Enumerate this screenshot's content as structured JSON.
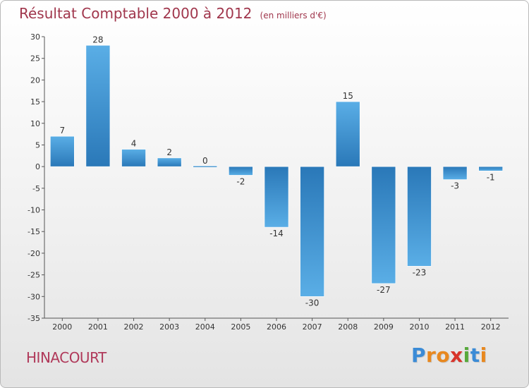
{
  "title": {
    "main": "Résultat Comptable 2000 à 2012",
    "unit": "(en milliers d'€)"
  },
  "town": "HINACOURT",
  "logo": {
    "letters": [
      "P",
      "r",
      "o",
      "x",
      "i",
      "t",
      "i"
    ],
    "colors": [
      "#3b8bd6",
      "#e8881f",
      "#e8881f",
      "#d8342b",
      "#57a93b",
      "#3b8bd6",
      "#e8881f"
    ]
  },
  "chart_data": {
    "type": "bar",
    "title": "Résultat Comptable 2000 à 2012",
    "ylabel": "en milliers d'€",
    "xlabel": "",
    "categories": [
      "2000",
      "2001",
      "2002",
      "2003",
      "2004",
      "2005",
      "2006",
      "2007",
      "2008",
      "2009",
      "2010",
      "2011",
      "2012"
    ],
    "values": [
      7,
      28,
      4,
      2,
      0,
      -2,
      -14,
      -30,
      15,
      -27,
      -23,
      -3,
      -1
    ],
    "value_labels": [
      "7",
      "28",
      "4",
      "2",
      "0",
      "-2",
      "-14",
      "-30",
      "15",
      "-27",
      "-23",
      "-3",
      "-1"
    ],
    "ylim": [
      -35,
      30
    ],
    "yticks": [
      30,
      25,
      20,
      15,
      10,
      5,
      0,
      -5,
      -10,
      -15,
      -20,
      -25,
      -30,
      -35
    ],
    "ytick_labels": [
      "30",
      "25",
      "20",
      "15",
      "10",
      "5",
      "0",
      "-5",
      "-10",
      "-15",
      "-20",
      "-25",
      "-30",
      "-35"
    ],
    "grid": false,
    "colors": {
      "bar_light": "#5aaee6",
      "bar_dark": "#2a78b8",
      "axis": "#555555"
    }
  }
}
